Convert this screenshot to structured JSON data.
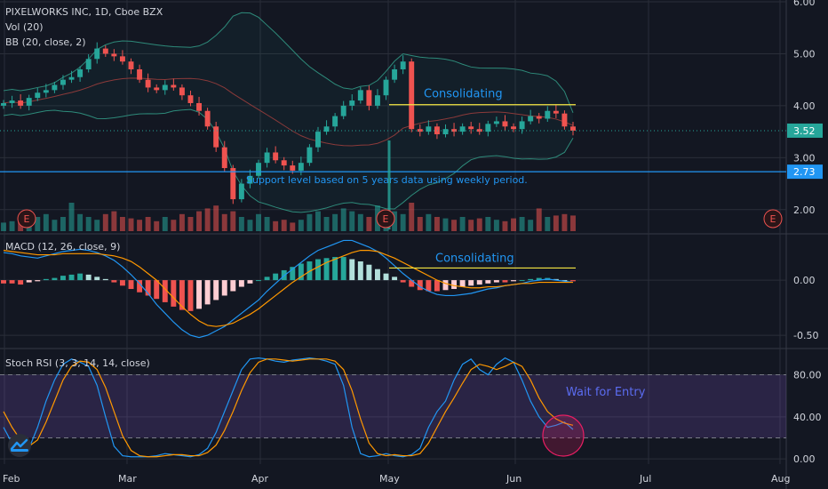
{
  "colors": {
    "background": "#131722",
    "grid": "#2a2e39",
    "text": "#d1d4dc",
    "up": "#26a69a",
    "down": "#ef5350",
    "bb_band": "#2e8a7a",
    "bb_basis": "#8b3a3a",
    "macd_line": "#2196f3",
    "signal_line": "#ff9800",
    "rsi_k": "#2196f3",
    "rsi_d": "#ff9800",
    "rsi_band": "#7e57c2",
    "annotation": "#2196f3",
    "yellow_line": "#f5e642",
    "support": "#2196f3",
    "circle": "#e91e63"
  },
  "chart_data": [
    {
      "type": "candlestick",
      "title": "PIXELWORKS INC, 1D, Cboe BZX",
      "indicators": [
        "Vol (20)",
        "BB (20, close, 2)"
      ],
      "x_ticks": [
        "Feb",
        "Mar",
        "Apr",
        "May",
        "Jun",
        "Jul",
        "Aug"
      ],
      "y_ticks": [
        "6.00",
        "5.00",
        "4.00",
        "3.00",
        "2.00"
      ],
      "ylim": [
        1.5,
        6.0
      ],
      "last_price": "3.52",
      "support_price": "2.73",
      "support_value": 2.73,
      "annotations": {
        "consolidating": "Consolidating",
        "support": "Support level based on 5 years data using weekly period."
      },
      "earnings_marker": "E",
      "close": [
        4.05,
        4.1,
        4.0,
        4.15,
        4.25,
        4.3,
        4.4,
        4.5,
        4.55,
        4.7,
        4.9,
        5.1,
        5.0,
        4.95,
        4.85,
        4.7,
        4.5,
        4.35,
        4.3,
        4.4,
        4.35,
        4.2,
        4.05,
        3.9,
        3.6,
        3.2,
        2.8,
        2.2,
        2.5,
        2.65,
        2.9,
        3.1,
        2.95,
        2.85,
        2.75,
        2.9,
        3.2,
        3.5,
        3.6,
        3.8,
        4.0,
        4.1,
        4.3,
        4.0,
        4.2,
        4.5,
        4.7,
        4.85,
        3.55,
        3.5,
        3.6,
        3.45,
        3.55,
        3.5,
        3.6,
        3.55,
        3.5,
        3.65,
        3.7,
        3.6,
        3.55,
        3.7,
        3.8,
        3.75,
        3.9,
        3.85,
        3.6,
        3.52
      ],
      "volume_rel": [
        0.3,
        0.35,
        0.4,
        0.3,
        0.5,
        0.6,
        0.4,
        0.5,
        1.0,
        0.6,
        0.5,
        0.4,
        0.6,
        0.7,
        0.5,
        0.45,
        0.4,
        0.5,
        0.35,
        0.5,
        0.4,
        0.6,
        0.5,
        0.7,
        0.8,
        0.9,
        0.6,
        0.7,
        0.5,
        0.4,
        0.6,
        0.5,
        0.35,
        0.4,
        0.3,
        0.4,
        0.6,
        0.7,
        0.5,
        0.6,
        0.8,
        0.7,
        0.6,
        0.5,
        0.9,
        0.6,
        0.7,
        0.6,
        1.0,
        0.5,
        0.6,
        0.5,
        0.45,
        0.4,
        0.5,
        0.4,
        0.45,
        0.5,
        0.4,
        0.35,
        0.45,
        0.5,
        0.4,
        0.8,
        0.5,
        0.55,
        0.6,
        0.55
      ]
    },
    {
      "type": "histogram",
      "title": "MACD (12, 26, close, 9)",
      "y_ticks": [
        "0.00",
        "-0.50"
      ],
      "ylim": [
        -0.62,
        0.42
      ],
      "annotation": "Consolidating",
      "histogram": [
        -0.03,
        -0.03,
        -0.04,
        -0.02,
        -0.01,
        0.01,
        0.02,
        0.04,
        0.05,
        0.06,
        0.05,
        0.03,
        0.01,
        -0.02,
        -0.05,
        -0.08,
        -0.11,
        -0.14,
        -0.17,
        -0.2,
        -0.24,
        -0.27,
        -0.28,
        -0.26,
        -0.22,
        -0.18,
        -0.14,
        -0.1,
        -0.06,
        -0.03,
        0.0,
        0.03,
        0.06,
        0.09,
        0.12,
        0.15,
        0.17,
        0.19,
        0.2,
        0.21,
        0.21,
        0.19,
        0.17,
        0.14,
        0.1,
        0.06,
        0.03,
        -0.02,
        -0.06,
        -0.09,
        -0.1,
        -0.1,
        -0.09,
        -0.08,
        -0.06,
        -0.05,
        -0.04,
        -0.03,
        -0.02,
        -0.02,
        -0.01,
        0.0,
        0.01,
        0.02,
        0.02,
        0.01,
        0.0,
        -0.01
      ],
      "macd": [
        0.25,
        0.24,
        0.22,
        0.21,
        0.2,
        0.22,
        0.24,
        0.26,
        0.27,
        0.28,
        0.27,
        0.25,
        0.22,
        0.18,
        0.12,
        0.05,
        -0.03,
        -0.12,
        -0.22,
        -0.3,
        -0.38,
        -0.45,
        -0.5,
        -0.52,
        -0.5,
        -0.46,
        -0.42,
        -0.36,
        -0.3,
        -0.24,
        -0.18,
        -0.1,
        -0.03,
        0.04,
        0.1,
        0.16,
        0.22,
        0.27,
        0.3,
        0.33,
        0.36,
        0.36,
        0.33,
        0.3,
        0.26,
        0.2,
        0.13,
        0.06,
        0.0,
        -0.06,
        -0.1,
        -0.13,
        -0.14,
        -0.14,
        -0.13,
        -0.12,
        -0.1,
        -0.08,
        -0.07,
        -0.05,
        -0.04,
        -0.03,
        -0.01,
        0.0,
        0.01,
        0.0,
        -0.01,
        -0.02
      ],
      "signal": [
        0.27,
        0.26,
        0.25,
        0.24,
        0.23,
        0.23,
        0.23,
        0.24,
        0.24,
        0.24,
        0.24,
        0.24,
        0.23,
        0.22,
        0.2,
        0.17,
        0.12,
        0.06,
        0.0,
        -0.08,
        -0.16,
        -0.24,
        -0.31,
        -0.37,
        -0.41,
        -0.42,
        -0.41,
        -0.39,
        -0.35,
        -0.31,
        -0.26,
        -0.2,
        -0.14,
        -0.08,
        -0.02,
        0.03,
        0.08,
        0.12,
        0.16,
        0.19,
        0.22,
        0.25,
        0.27,
        0.27,
        0.26,
        0.23,
        0.2,
        0.16,
        0.12,
        0.08,
        0.04,
        0.0,
        -0.03,
        -0.05,
        -0.06,
        -0.07,
        -0.07,
        -0.06,
        -0.06,
        -0.05,
        -0.04,
        -0.03,
        -0.03,
        -0.02,
        -0.02,
        -0.02,
        -0.02,
        -0.02
      ]
    },
    {
      "type": "line",
      "title": "Stoch RSI (3, 3, 14, 14, close)",
      "y_ticks": [
        "80.00",
        "40.00",
        "0.00"
      ],
      "ylim": [
        -5,
        105
      ],
      "band": [
        20,
        80
      ],
      "annotation": "Wait for Entry",
      "k": [
        30,
        15,
        5,
        10,
        30,
        55,
        75,
        90,
        95,
        92,
        88,
        70,
        40,
        12,
        3,
        2,
        2,
        2,
        3,
        5,
        4,
        3,
        2,
        4,
        10,
        25,
        45,
        65,
        85,
        95,
        96,
        95,
        93,
        92,
        94,
        95,
        96,
        95,
        93,
        90,
        70,
        30,
        5,
        2,
        3,
        5,
        3,
        2,
        4,
        10,
        30,
        45,
        55,
        75,
        90,
        95,
        85,
        80,
        90,
        96,
        92,
        75,
        55,
        40,
        30,
        32,
        35,
        28
      ],
      "d": [
        45,
        30,
        18,
        12,
        18,
        35,
        55,
        75,
        88,
        93,
        92,
        85,
        68,
        45,
        22,
        8,
        3,
        2,
        2,
        3,
        4,
        4,
        3,
        3,
        6,
        13,
        27,
        45,
        65,
        82,
        92,
        95,
        95,
        94,
        93,
        94,
        95,
        95,
        95,
        93,
        85,
        65,
        38,
        15,
        5,
        3,
        4,
        3,
        3,
        5,
        15,
        30,
        45,
        58,
        72,
        85,
        90,
        88,
        85,
        88,
        92,
        88,
        75,
        58,
        45,
        38,
        34,
        32
      ]
    }
  ]
}
